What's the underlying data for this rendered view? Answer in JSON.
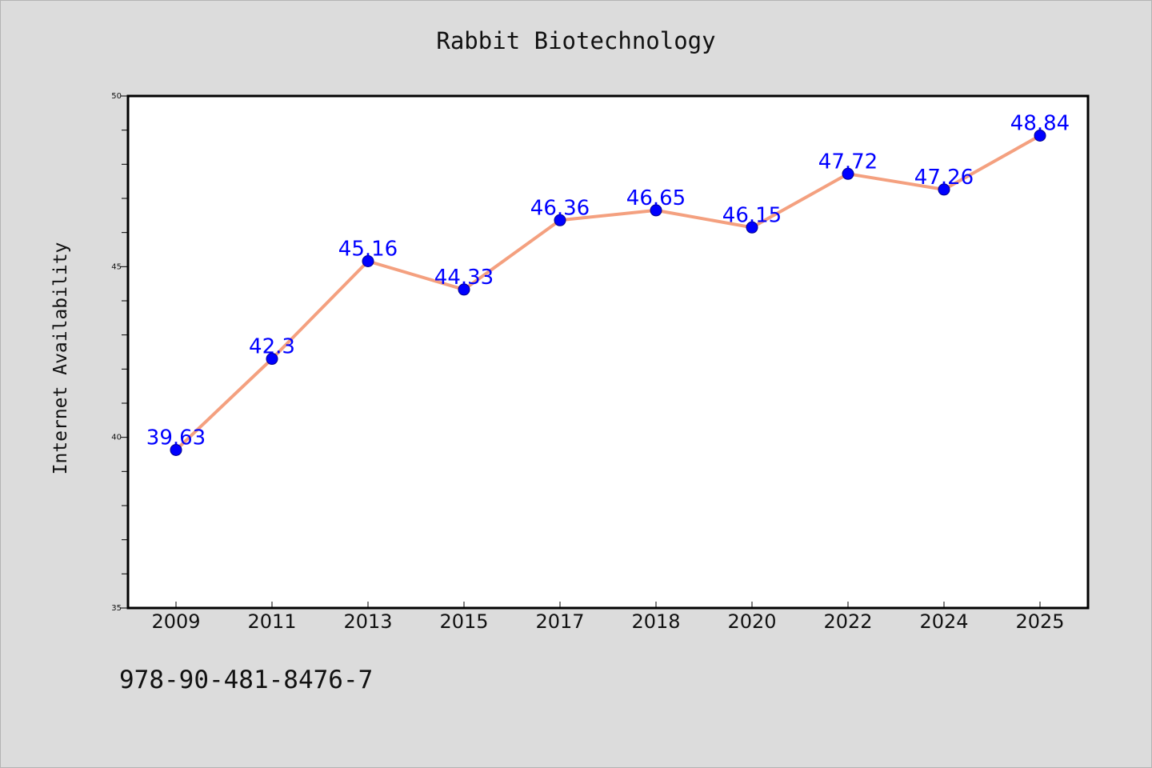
{
  "title": "Rabbit Biotechnology",
  "footer_text": "978-90-481-8476-7",
  "chart_data": {
    "type": "line",
    "title": "Rabbit Biotechnology",
    "xlabel": "",
    "ylabel": "Internet Availability",
    "categories": [
      "2009",
      "2011",
      "2013",
      "2015",
      "2017",
      "2018",
      "2020",
      "2022",
      "2024",
      "2025"
    ],
    "series": [
      {
        "values": [
          39.63,
          42.3,
          45.16,
          44.33,
          46.36,
          46.65,
          46.15,
          47.72,
          47.26,
          48.84
        ]
      }
    ],
    "data_labels": [
      "39.63",
      "42.3",
      "45.16",
      "44.33",
      "46.36",
      "46.65",
      "46.15",
      "47.72",
      "47.26",
      "48.84"
    ],
    "ylim": [
      35,
      50
    ],
    "y_ticks": [
      35,
      40,
      45,
      50
    ],
    "y_minor_step": 1,
    "grid": false,
    "legend": "none",
    "colors": {
      "line": "#f4a07f",
      "marker": "#0000ff",
      "label": "#0000ff",
      "plot_background": "#ffffff",
      "figure_background": "#dcdcdc"
    }
  }
}
